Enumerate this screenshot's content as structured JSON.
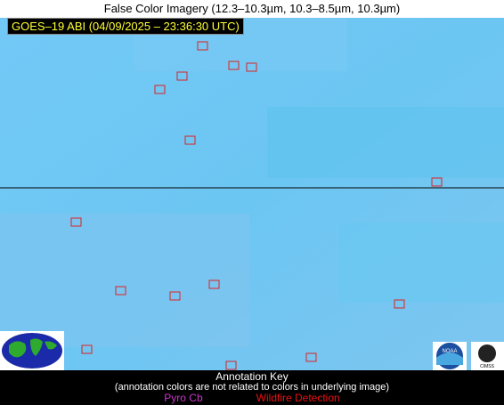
{
  "header": {
    "title": "False Color Imagery (12.3–10.3µm, 10.3–8.5µm, 10.3µm)",
    "badge": "GOES–19 ABI (04/09/2025 – 23:36:30 UTC)"
  },
  "annotation_key": {
    "title": "Annotation Key",
    "note": "(annotation colors are not related to colors in underlying image)",
    "items": [
      "Pyro Cb",
      "Wildfire Detection"
    ]
  },
  "logos": [
    "NOAA",
    "CIMSS"
  ]
}
